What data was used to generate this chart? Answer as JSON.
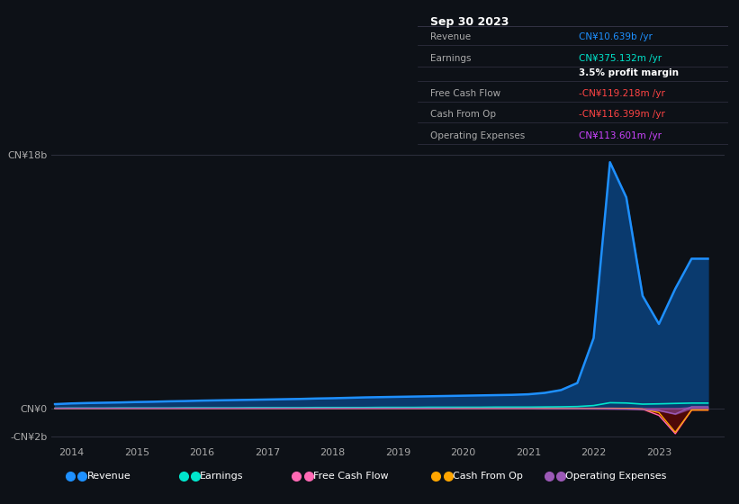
{
  "background_color": "#0d1117",
  "plot_bg_color": "#0d1117",
  "grid_color": "#2a2d3a",
  "title_box": {
    "date": "Sep 30 2023",
    "rows": [
      {
        "label": "Revenue",
        "value": "CN¥10.639b /yr",
        "value_color": "#00aaff"
      },
      {
        "label": "Earnings",
        "value": "CN¥375.132m /yr",
        "value_color": "#00ffcc"
      },
      {
        "label": "",
        "value": "3.5% profit margin",
        "value_color": "#ffffff"
      },
      {
        "label": "Free Cash Flow",
        "value": "-CN¥119.218m /yr",
        "value_color": "#ff4444"
      },
      {
        "label": "Cash From Op",
        "value": "-CN¥116.399m /yr",
        "value_color": "#ff4444"
      },
      {
        "label": "Operating Expenses",
        "value": "CN¥113.601m /yr",
        "value_color": "#cc44ff"
      }
    ]
  },
  "years": [
    2013.75,
    2014.0,
    2014.25,
    2014.5,
    2014.75,
    2015.0,
    2015.25,
    2015.5,
    2015.75,
    2016.0,
    2016.25,
    2016.5,
    2016.75,
    2017.0,
    2017.25,
    2017.5,
    2017.75,
    2018.0,
    2018.25,
    2018.5,
    2018.75,
    2019.0,
    2019.25,
    2019.5,
    2019.75,
    2020.0,
    2020.25,
    2020.5,
    2020.75,
    2021.0,
    2021.25,
    2021.5,
    2021.75,
    2022.0,
    2022.25,
    2022.5,
    2022.75,
    2023.0,
    2023.25,
    2023.5,
    2023.75
  ],
  "revenue": [
    0.3,
    0.35,
    0.38,
    0.4,
    0.42,
    0.45,
    0.47,
    0.5,
    0.52,
    0.55,
    0.57,
    0.59,
    0.61,
    0.63,
    0.65,
    0.67,
    0.7,
    0.72,
    0.75,
    0.78,
    0.8,
    0.82,
    0.84,
    0.86,
    0.88,
    0.9,
    0.92,
    0.94,
    0.96,
    1.0,
    1.1,
    1.3,
    1.8,
    5.0,
    17.5,
    15.0,
    8.0,
    6.0,
    8.5,
    10.639,
    10.639
  ],
  "earnings": [
    0.01,
    0.02,
    0.02,
    0.02,
    0.03,
    0.03,
    0.03,
    0.03,
    0.04,
    0.04,
    0.04,
    0.04,
    0.05,
    0.05,
    0.05,
    0.05,
    0.06,
    0.06,
    0.06,
    0.06,
    0.07,
    0.07,
    0.07,
    0.08,
    0.08,
    0.08,
    0.08,
    0.09,
    0.09,
    0.09,
    0.1,
    0.11,
    0.13,
    0.2,
    0.4,
    0.38,
    0.3,
    0.32,
    0.35,
    0.375,
    0.375
  ],
  "free_cash_flow": [
    0.01,
    0.01,
    0.01,
    0.01,
    0.01,
    0.01,
    0.01,
    0.01,
    0.01,
    0.01,
    0.01,
    0.01,
    0.01,
    0.01,
    0.01,
    0.01,
    0.01,
    0.01,
    0.01,
    0.01,
    0.01,
    0.01,
    0.01,
    0.01,
    0.01,
    0.01,
    0.01,
    0.01,
    0.01,
    0.01,
    0.01,
    0.01,
    0.01,
    0.01,
    0.01,
    0.0,
    -0.05,
    -0.5,
    -1.8,
    -0.119,
    -0.119
  ],
  "cash_from_op": [
    0.0,
    0.0,
    0.0,
    0.0,
    0.0,
    0.0,
    0.0,
    0.0,
    0.0,
    0.0,
    0.0,
    0.0,
    0.0,
    0.0,
    0.0,
    0.0,
    0.0,
    0.0,
    0.0,
    0.0,
    0.0,
    0.0,
    0.0,
    0.0,
    0.0,
    0.0,
    0.0,
    0.0,
    0.0,
    0.0,
    0.0,
    0.0,
    0.0,
    -0.01,
    -0.02,
    -0.01,
    -0.05,
    -0.3,
    -1.7,
    -0.116,
    -0.116
  ],
  "op_expenses": [
    0.0,
    0.0,
    0.0,
    0.0,
    0.0,
    0.0,
    0.0,
    0.0,
    0.0,
    0.0,
    0.0,
    0.0,
    0.0,
    0.0,
    0.0,
    0.0,
    0.0,
    0.0,
    0.0,
    0.0,
    0.0,
    0.0,
    0.0,
    0.0,
    0.0,
    -0.01,
    -0.01,
    -0.01,
    -0.01,
    -0.01,
    -0.02,
    -0.02,
    -0.02,
    -0.03,
    -0.04,
    -0.05,
    -0.08,
    -0.15,
    -0.4,
    0.1136,
    0.1136
  ],
  "revenue_color": "#1e90ff",
  "earnings_color": "#00e5cc",
  "free_cash_flow_color": "#ff69b4",
  "cash_from_op_color": "#ffa500",
  "op_expenses_color": "#9b59b6",
  "revenue_fill_color": "#0a3a6e",
  "ylim": [
    -2.5,
    19
  ],
  "yticks": [
    -2,
    0,
    18
  ],
  "ytick_labels": [
    "-CN¥2b",
    "CN¥0",
    "CN¥18b"
  ],
  "xtick_years": [
    2014,
    2015,
    2016,
    2017,
    2018,
    2019,
    2020,
    2021,
    2022,
    2023
  ],
  "legend_items": [
    "Revenue",
    "Earnings",
    "Free Cash Flow",
    "Cash From Op",
    "Operating Expenses"
  ],
  "legend_colors": [
    "#1e90ff",
    "#00e5cc",
    "#ff69b4",
    "#ffa500",
    "#9b59b6"
  ]
}
